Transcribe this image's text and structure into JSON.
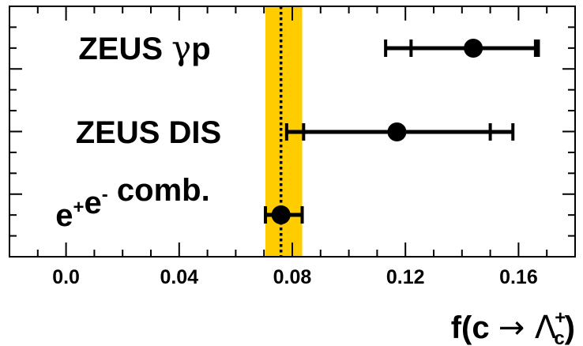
{
  "chart_data": {
    "type": "scatter",
    "subtype": "horizontal-errorbar",
    "xlabel": "f(c → Λc+)",
    "xlabel_parts": {
      "prefix": "f(c ",
      "arrow": "→",
      "symbol": "Λ",
      "superscript": "+",
      "subscript": "c",
      "suffix": ")"
    },
    "xlim": [
      -0.02,
      0.18
    ],
    "xticks": [
      0.0,
      0.04,
      0.08,
      0.12,
      0.16
    ],
    "xtick_labels": [
      "0.0",
      "0.04",
      "0.08",
      "0.12",
      "0.16"
    ],
    "grid": false,
    "band": {
      "center": 0.076,
      "low": 0.0705,
      "high": 0.0835,
      "color": "#FFCC00",
      "line_style": "dotted",
      "line_color": "#000000"
    },
    "points": [
      {
        "label_parts": [
          {
            "text": "ZEUS "
          },
          {
            "text": "γ",
            "font": "serif"
          },
          {
            "text": "p"
          }
        ],
        "label": "ZEUS γp",
        "value": 0.144,
        "stat_err": [
          0.022,
          0.022
        ],
        "total_err": [
          0.031,
          0.023
        ]
      },
      {
        "label_parts": [
          {
            "text": "ZEUS DIS"
          }
        ],
        "label": "ZEUS DIS",
        "value": 0.117,
        "stat_err": [
          0.033,
          0.033
        ],
        "total_err": [
          0.039,
          0.041
        ]
      },
      {
        "label_parts": [
          {
            "text": "e"
          },
          {
            "text": "+",
            "sup": true
          },
          {
            "text": "e"
          },
          {
            "text": "-",
            "sup": true
          },
          {
            "text": " comb."
          }
        ],
        "label": "e+e- comb.",
        "value": 0.076,
        "stat_err": [],
        "total_err": [
          0.0055,
          0.0075
        ]
      }
    ],
    "colors": {
      "marker": "#000000",
      "band": "#FFCC00",
      "frame": "#000000"
    }
  }
}
